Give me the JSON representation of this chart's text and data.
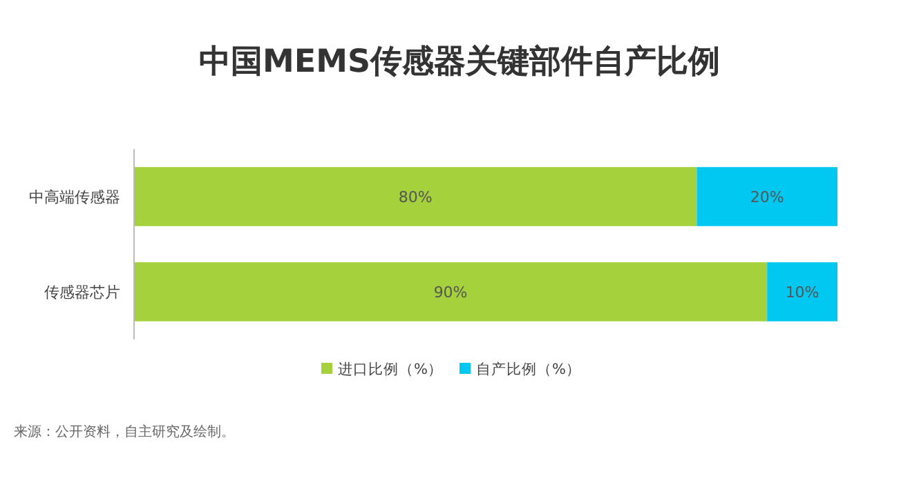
{
  "chart_data": {
    "type": "bar",
    "orientation": "horizontal",
    "stacked": true,
    "title": "中国MEMS传感器关键部件自产比例",
    "categories": [
      "中高端传感器",
      "传感器芯片"
    ],
    "series": [
      {
        "name": "进口比例（%）",
        "color": "#a5d13c",
        "values": [
          80,
          90
        ],
        "value_labels": [
          "80%",
          "90%"
        ]
      },
      {
        "name": "自产比例（%）",
        "color": "#00c8f0",
        "values": [
          20,
          10
        ],
        "value_labels": [
          "20%",
          "10%"
        ]
      }
    ],
    "legend": "bottom",
    "annotations": [
      "来源：公开资料，自主研究及绘制。"
    ]
  }
}
